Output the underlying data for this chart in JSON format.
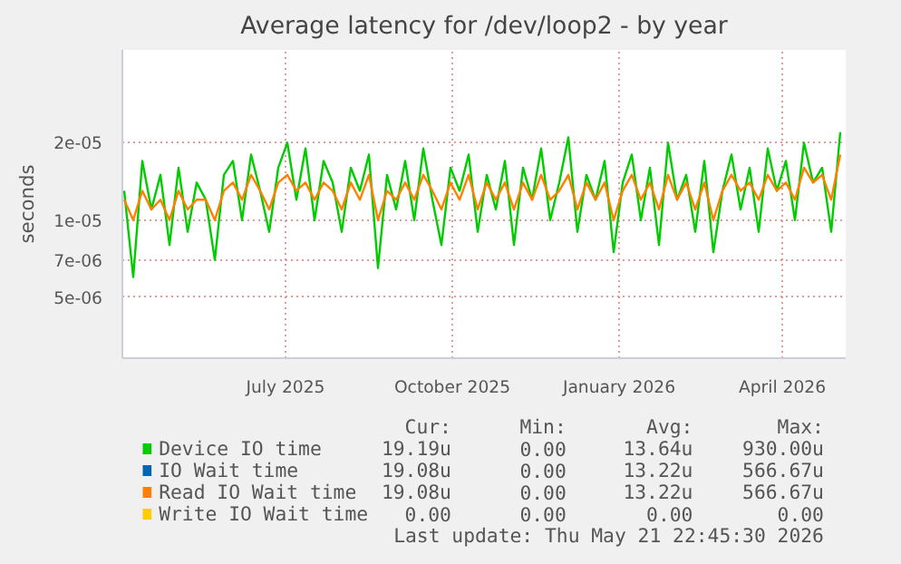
{
  "chart_data": {
    "type": "line",
    "title": "Average latency for /dev/loop2 - by year",
    "ylabel": "seconds",
    "log": true,
    "grid": true,
    "legend": "bottom",
    "line_style": "solid",
    "xlim": [
      "2025-04-02",
      "2026-05-06"
    ],
    "xticks": [
      {
        "value": "2025-07-01",
        "label": "July 2025"
      },
      {
        "value": "2025-10-01",
        "label": "October 2025"
      },
      {
        "value": "2026-01-01",
        "label": "January 2026"
      },
      {
        "value": "2026-04-01",
        "label": "April 2026"
      }
    ],
    "ylim": [
      2.9e-06,
      4.6e-05
    ],
    "yticks": [
      {
        "value": 5e-06,
        "label": "5e-06"
      },
      {
        "value": 7e-06,
        "label": "7e-06"
      },
      {
        "value": 1e-05,
        "label": "1e-05"
      },
      {
        "value": 2e-05,
        "label": "2e-05"
      }
    ],
    "x": [
      "2025-04-03",
      "2025-04-08",
      "2025-04-13",
      "2025-04-18",
      "2025-04-23",
      "2025-04-28",
      "2025-05-03",
      "2025-05-08",
      "2025-05-13",
      "2025-05-18",
      "2025-05-23",
      "2025-05-28",
      "2025-06-02",
      "2025-06-07",
      "2025-06-12",
      "2025-06-17",
      "2025-06-22",
      "2025-06-27",
      "2025-07-02",
      "2025-07-07",
      "2025-07-12",
      "2025-07-17",
      "2025-07-22",
      "2025-07-27",
      "2025-08-01",
      "2025-08-06",
      "2025-08-11",
      "2025-08-16",
      "2025-08-21",
      "2025-08-26",
      "2025-08-31",
      "2025-09-05",
      "2025-09-10",
      "2025-09-15",
      "2025-09-20",
      "2025-09-25",
      "2025-09-30",
      "2025-10-05",
      "2025-10-10",
      "2025-10-15",
      "2025-10-20",
      "2025-10-25",
      "2025-10-30",
      "2025-11-04",
      "2025-11-09",
      "2025-11-14",
      "2025-11-19",
      "2025-11-24",
      "2025-11-29",
      "2025-12-04",
      "2025-12-09",
      "2025-12-14",
      "2025-12-19",
      "2025-12-24",
      "2025-12-29",
      "2026-01-03",
      "2026-01-08",
      "2026-01-13",
      "2026-01-18",
      "2026-01-23",
      "2026-01-28",
      "2026-02-02",
      "2026-02-07",
      "2026-02-12",
      "2026-02-17",
      "2026-02-22",
      "2026-02-27",
      "2026-03-04",
      "2026-03-09",
      "2026-03-14",
      "2026-03-19",
      "2026-03-24",
      "2026-03-29",
      "2026-04-03",
      "2026-04-08",
      "2026-04-13",
      "2026-04-18",
      "2026-04-23",
      "2026-04-28",
      "2026-05-03"
    ],
    "series": [
      {
        "name": "Device IO time",
        "color": "#00cc00",
        "values": [
          1.3e-05,
          6e-06,
          1.7e-05,
          1.1e-05,
          1.5e-05,
          8e-06,
          1.6e-05,
          9e-06,
          1.4e-05,
          1.2e-05,
          7e-06,
          1.5e-05,
          1.7e-05,
          1e-05,
          1.8e-05,
          1.3e-05,
          9e-06,
          1.6e-05,
          2e-05,
          1.2e-05,
          1.9e-05,
          1e-05,
          1.7e-05,
          1.4e-05,
          9e-06,
          1.6e-05,
          1.3e-05,
          1.8e-05,
          6.5e-06,
          1.5e-05,
          1.1e-05,
          1.7e-05,
          1e-05,
          1.9e-05,
          1.2e-05,
          8e-06,
          1.6e-05,
          1.3e-05,
          1.8e-05,
          9e-06,
          1.5e-05,
          1.1e-05,
          1.7e-05,
          8e-06,
          1.6e-05,
          1.2e-05,
          1.9e-05,
          1e-05,
          1.4e-05,
          2.1e-05,
          9e-06,
          1.5e-05,
          1.2e-05,
          1.7e-05,
          7.5e-06,
          1.4e-05,
          1.8e-05,
          1e-05,
          1.6e-05,
          8e-06,
          2e-05,
          1.2e-05,
          1.5e-05,
          9e-06,
          1.7e-05,
          7.5e-06,
          1.3e-05,
          1.8e-05,
          1.1e-05,
          1.6e-05,
          9e-06,
          1.9e-05,
          1.3e-05,
          1.7e-05,
          1e-05,
          2e-05,
          1.4e-05,
          1.6e-05,
          9e-06,
          2.2e-05
        ]
      },
      {
        "name": "IO Wait time",
        "color": "#0066b3",
        "values": [
          null,
          null,
          null,
          null,
          null,
          null,
          null,
          null,
          null,
          null,
          null,
          null,
          null,
          null,
          null,
          null,
          null,
          null,
          null,
          null,
          null,
          null,
          null,
          null,
          null,
          null,
          null,
          null,
          null,
          null,
          null,
          null,
          null,
          null,
          null,
          null,
          null,
          null,
          null,
          null,
          null,
          null,
          null,
          null,
          null,
          null,
          null,
          null,
          null,
          null,
          null,
          null,
          null,
          null,
          null,
          null,
          null,
          null,
          null,
          null,
          null,
          null,
          null,
          null,
          null,
          null,
          null,
          null,
          null,
          null,
          null,
          null,
          null,
          null,
          null,
          null,
          null,
          null,
          null,
          null
        ]
      },
      {
        "name": "Read IO Wait time",
        "color": "#ff8000",
        "values": [
          1.2e-05,
          1e-05,
          1.3e-05,
          1.1e-05,
          1.2e-05,
          1e-05,
          1.3e-05,
          1.1e-05,
          1.2e-05,
          1.2e-05,
          1e-05,
          1.3e-05,
          1.4e-05,
          1.2e-05,
          1.5e-05,
          1.3e-05,
          1.1e-05,
          1.4e-05,
          1.5e-05,
          1.3e-05,
          1.4e-05,
          1.2e-05,
          1.4e-05,
          1.3e-05,
          1.1e-05,
          1.4e-05,
          1.2e-05,
          1.5e-05,
          1e-05,
          1.3e-05,
          1.2e-05,
          1.4e-05,
          1.2e-05,
          1.5e-05,
          1.3e-05,
          1.1e-05,
          1.4e-05,
          1.2e-05,
          1.5e-05,
          1.1e-05,
          1.4e-05,
          1.2e-05,
          1.4e-05,
          1.1e-05,
          1.4e-05,
          1.2e-05,
          1.5e-05,
          1.2e-05,
          1.3e-05,
          1.5e-05,
          1.1e-05,
          1.4e-05,
          1.2e-05,
          1.4e-05,
          1e-05,
          1.3e-05,
          1.5e-05,
          1.2e-05,
          1.4e-05,
          1.1e-05,
          1.5e-05,
          1.2e-05,
          1.4e-05,
          1.1e-05,
          1.4e-05,
          1e-05,
          1.3e-05,
          1.5e-05,
          1.3e-05,
          1.4e-05,
          1.2e-05,
          1.5e-05,
          1.3e-05,
          1.4e-05,
          1.2e-05,
          1.6e-05,
          1.4e-05,
          1.5e-05,
          1.2e-05,
          1.8e-05
        ]
      },
      {
        "name": "Write IO Wait time",
        "color": "#ffcc00",
        "values": [
          null,
          null,
          null,
          null,
          null,
          null,
          null,
          null,
          null,
          null,
          null,
          null,
          null,
          null,
          null,
          null,
          null,
          null,
          null,
          null,
          null,
          null,
          null,
          null,
          null,
          null,
          null,
          null,
          null,
          null,
          null,
          null,
          null,
          null,
          null,
          null,
          null,
          null,
          null,
          null,
          null,
          null,
          null,
          null,
          null,
          null,
          null,
          null,
          null,
          null,
          null,
          null,
          null,
          null,
          null,
          null,
          null,
          null,
          null,
          null,
          null,
          null,
          null,
          null,
          null,
          null,
          null,
          null,
          null,
          null,
          null,
          null,
          null,
          null,
          null,
          null,
          null,
          null,
          null,
          null
        ]
      }
    ],
    "annotations": [
      "Cur:",
      "Min:",
      "Avg:",
      "Max:",
      "19.19u",
      "0.00",
      "13.64u",
      "930.00u",
      "19.08u",
      "0.00",
      "13.22u",
      "566.67u",
      "19.08u",
      "0.00",
      "13.22u",
      "566.67u",
      "0.00",
      "0.00",
      "0.00",
      "0.00",
      "Last update: Thu May 21 22:45:30 2026"
    ]
  }
}
